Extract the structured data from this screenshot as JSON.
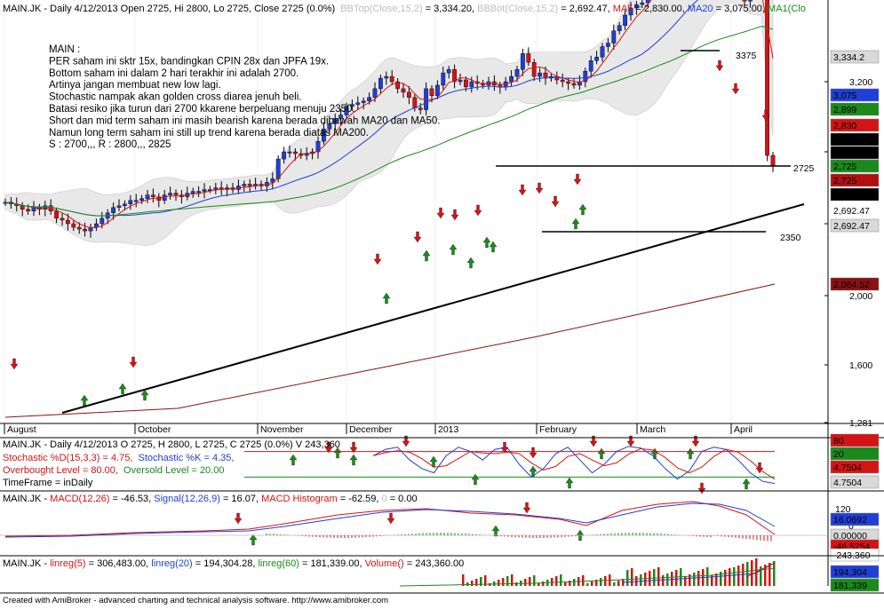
{
  "chart_data": {
    "type": "candlestick",
    "symbol": "MAIN.JK",
    "header": {
      "prefix": "MAIN.JK - Daily 4/12/2013 Open 2725, Hi 2800, Lo 2725, Close 2725 (0.0%)",
      "bbtop_label": "BBTop(Close,15,2)",
      "bbtop_value": " = 3,334.20, ",
      "bbbot_label": "BBBot(Close,15,2)",
      "bbbot_value": " = 2,692.47, ",
      "ma5_label": "MA5",
      "ma5_value": " = 2,830.00, ",
      "ma20_label": "MA20",
      "ma20_value": " = 3,075.00, ",
      "ma1_label": "MA1(Clo"
    },
    "notes": [
      "MAIN :",
      "PER saham ini sktr 15x, bandingkan CPIN 28x dan JPFA 19x.",
      "Bottom saham ini dalam 2 hari terakhir ini adalah 2700.",
      "Artinya jangan membuat new low lagi.",
      "Stochastic nampak akan golden cross diarea jenuh beli.",
      "Batasi resiko jika turun dari 2700 kkarene berpeluang menuju 2350.",
      "Short dan mid term saham ini masih bearish karena berada dibawah MA20 dan MA50.",
      "Namun long term saham ini still up trend karena berada diatas MA200.",
      "S : 2700,,, R : 2800,,, 2825"
    ],
    "annotations": [
      "3375",
      "2725",
      "2350"
    ],
    "y_ticks": [
      "3,200",
      "2,800",
      "2,400",
      "2,000",
      "1,600",
      "1,281"
    ],
    "x_ticks": [
      "August",
      "October",
      "November",
      "December",
      "2013",
      "February",
      "March",
      "April"
    ],
    "price_tags": [
      {
        "text": "3,334.2",
        "bg": "#d9d9d9",
        "fg": "#000000"
      },
      {
        "text": "3,075",
        "bg": "#1f3fd6",
        "fg": "#ffffff"
      },
      {
        "text": "2,899",
        "bg": "#1a8a1a",
        "fg": "#ffffff"
      },
      {
        "text": "2,830",
        "bg": "#d41414",
        "fg": "#ffffff"
      },
      {
        "text": "2,725",
        "bg": "#000000",
        "fg": "#ffffff"
      },
      {
        "text": "2,725",
        "bg": "#000000",
        "fg": "#ffffff"
      },
      {
        "text": "2,725",
        "bg": "#1a8a1a",
        "fg": "#ffffff"
      },
      {
        "text": "2,725",
        "bg": "#b01010",
        "fg": "#ffffff"
      },
      {
        "text": "2,725",
        "bg": "#000000",
        "fg": "#ffffff"
      },
      {
        "text": "2,692.47",
        "bg": "#ffffff",
        "fg": "#000000"
      },
      {
        "text": "2,692.47",
        "bg": "#d9d9d9",
        "fg": "#000000"
      },
      {
        "text": "2,064.52",
        "bg": "#8b1010",
        "fg": "#ffffff"
      }
    ],
    "stochastic": {
      "header1": "MAIN.JK - Daily 4/12/2013 O 2725, H 2800, L 2725, C 2725 (0.0%) V 243,360",
      "d_label": "Stochastic %D(15,3,3) = 4.75,",
      "k_label": "Stochastic %K = 4.35,",
      "ob_label": "Overbought Level = 80.00,",
      "os_label": "Oversold Level = 20.00",
      "tf_label": "TimeFrame = inDaily",
      "tags": [
        {
          "text": "80",
          "bg": "#d41414",
          "fg": "#ffffff"
        },
        {
          "text": "20",
          "bg": "#1a8a1a",
          "fg": "#ffffff"
        },
        {
          "text": "4.7504",
          "bg": "#d41414",
          "fg": "#000000"
        },
        {
          "text": "4.7504",
          "bg": "#d9d9d9",
          "fg": "#000000"
        }
      ]
    },
    "macd": {
      "header_prefix": "MAIN.JK - ",
      "macd_label": "MACD(12,26)",
      "macd_value": " = -46.53, ",
      "signal_label": "Signal(12,26,9)",
      "signal_value": " = 16.07, ",
      "hist_label": "MACD Histogram",
      "hist_value": " = -62.59, ",
      "zero_label": "0",
      "zero_value": " = 0.00",
      "y_ticks": [
        "120",
        "0"
      ],
      "tags": [
        {
          "text": "16.0692",
          "bg": "#1f3fd6",
          "fg": "#ffffff"
        },
        {
          "text": "0.00000",
          "bg": "#d9d9d9",
          "fg": "#000000"
        },
        {
          "text": "-46.5254",
          "bg": "#d41414",
          "fg": "#000000"
        },
        {
          "text": "-243.360",
          "bg": "#ffffff",
          "fg": "#d41414"
        }
      ]
    },
    "linreg": {
      "header_prefix": "MAIN.JK - ",
      "lr5_label": "linreg(5)",
      "lr5_value": " = 306,483.00, ",
      "lr20_label": "linreg(20)",
      "lr20_value": " = 194,304.28, ",
      "lr60_label": "linreg(60)",
      "lr60_value": " = 181,339.00, ",
      "vol_label": "Volume()",
      "vol_value": " = 243,360.00",
      "tags": [
        {
          "text": "194,304",
          "bg": "#1f3fd6",
          "fg": "#ffffff"
        },
        {
          "text": "181,339",
          "bg": "#1a8a1a",
          "fg": "#000000"
        }
      ]
    },
    "series_close": [
      2520,
      2510,
      2500,
      2480,
      2470,
      2490,
      2480,
      2500,
      2470,
      2430,
      2420,
      2400,
      2380,
      2370,
      2360,
      2380,
      2400,
      2430,
      2460,
      2490,
      2500,
      2510,
      2530,
      2530,
      2540,
      2560,
      2550,
      2530,
      2560,
      2570,
      2560,
      2550,
      2570,
      2580,
      2580,
      2590,
      2590,
      2600,
      2590,
      2600,
      2590,
      2610,
      2620,
      2610,
      2620,
      2610,
      2630,
      2650,
      2760,
      2800,
      2800,
      2790,
      2780,
      2790,
      2800,
      2860,
      2930,
      2960,
      2990,
      3010,
      3060,
      3070,
      3080,
      3090,
      3110,
      3160,
      3220,
      3230,
      3200,
      3160,
      3140,
      3110,
      3050,
      3040,
      3160,
      3120,
      3180,
      3250,
      3270,
      3200,
      3210,
      3170,
      3200,
      3190,
      3180,
      3200,
      3180,
      3170,
      3200,
      3230,
      3270,
      3360,
      3310,
      3230,
      3250,
      3220,
      3230,
      3210,
      3200,
      3190,
      3180,
      3200,
      3260,
      3320,
      3340,
      3400,
      3420,
      3490,
      3520,
      3580,
      3620,
      3640,
      3650,
      3720,
      3780,
      3810,
      3840,
      3860,
      3900,
      3930,
      3900,
      3880,
      3860,
      3820,
      3780,
      3760,
      3720,
      3740,
      3730,
      3700,
      3660,
      3700,
      3740,
      3720,
      2780,
      2725
    ],
    "footer": "Created with AmiBroker - advanced charting and technical analysis software. http://www.amibroker.com"
  }
}
